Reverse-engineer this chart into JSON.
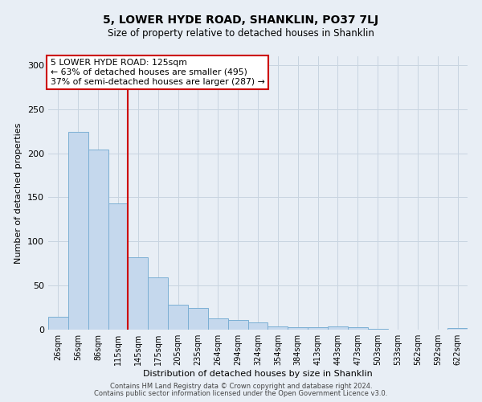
{
  "title": "5, LOWER HYDE ROAD, SHANKLIN, PO37 7LJ",
  "subtitle": "Size of property relative to detached houses in Shanklin",
  "xlabel": "Distribution of detached houses by size in Shanklin",
  "ylabel": "Number of detached properties",
  "bar_color": "#c5d8ed",
  "bar_edgecolor": "#7bafd4",
  "background_color": "#e8eef5",
  "categories": [
    "26sqm",
    "56sqm",
    "86sqm",
    "115sqm",
    "145sqm",
    "175sqm",
    "205sqm",
    "235sqm",
    "264sqm",
    "294sqm",
    "324sqm",
    "354sqm",
    "384sqm",
    "413sqm",
    "443sqm",
    "473sqm",
    "503sqm",
    "533sqm",
    "562sqm",
    "592sqm",
    "622sqm"
  ],
  "values": [
    15,
    224,
    204,
    143,
    82,
    59,
    28,
    25,
    13,
    11,
    8,
    4,
    3,
    3,
    4,
    3,
    1,
    0,
    0,
    0,
    2
  ],
  "red_line_x": 3.5,
  "ylim": [
    0,
    310
  ],
  "yticks": [
    0,
    50,
    100,
    150,
    200,
    250,
    300
  ],
  "annotation_title": "5 LOWER HYDE ROAD: 125sqm",
  "annotation_line1": "← 63% of detached houses are smaller (495)",
  "annotation_line2": "37% of semi-detached houses are larger (287) →",
  "red_line_color": "#cc0000",
  "annotation_box_facecolor": "#ffffff",
  "annotation_box_edgecolor": "#cc0000",
  "grid_color": "#c8d4e0",
  "footer_line1": "Contains HM Land Registry data © Crown copyright and database right 2024.",
  "footer_line2": "Contains public sector information licensed under the Open Government Licence v3.0."
}
